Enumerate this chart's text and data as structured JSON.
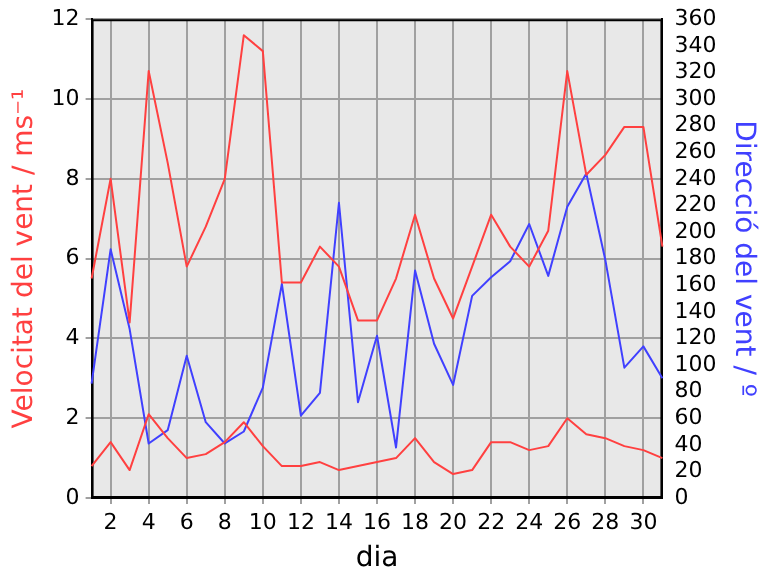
{
  "chart_data": {
    "type": "line",
    "xlabel": "dia",
    "ylabel": "Velocitat del vent / ms⁻¹",
    "y2label": "Direcció del vent / º",
    "x": [
      1,
      2,
      3,
      4,
      5,
      6,
      7,
      8,
      9,
      10,
      11,
      12,
      13,
      14,
      15,
      16,
      17,
      18,
      19,
      20,
      21,
      22,
      23,
      24,
      25,
      26,
      27,
      28,
      29,
      30,
      31
    ],
    "series": [
      {
        "color": "#ff4040",
        "values": [
          5.5,
          8.0,
          4.4,
          10.7,
          8.4,
          5.8,
          6.8,
          8.0,
          11.6,
          11.2,
          5.4,
          5.4,
          6.3,
          5.8,
          4.45,
          4.45,
          5.5,
          7.1,
          5.5,
          4.5,
          5.8,
          7.1,
          6.3,
          5.8,
          6.7,
          10.7,
          8.1,
          8.6,
          9.3,
          9.3,
          6.3
        ]
      },
      {
        "color": "#ff4040",
        "values": [
          0.8,
          1.4,
          0.7,
          2.1,
          1.5,
          1.0,
          1.1,
          1.4,
          1.9,
          1.3,
          0.8,
          0.8,
          0.9,
          0.7,
          0.8,
          0.9,
          1.0,
          1.5,
          0.9,
          0.6,
          0.7,
          1.4,
          1.4,
          1.2,
          1.3,
          2.0,
          1.6,
          1.5,
          1.3,
          1.2,
          1.0
        ]
      },
      {
        "color": "#4040ff",
        "axis": "y2",
        "values": [
          86,
          187,
          127,
          41,
          51,
          107,
          57,
          41,
          50,
          83,
          161,
          62,
          79,
          222,
          72,
          122,
          38,
          171,
          116,
          85,
          152,
          166,
          178,
          206,
          167,
          219,
          244,
          179,
          98,
          114,
          90
        ]
      }
    ],
    "xlim": [
      1,
      31
    ],
    "xticks": [
      2,
      4,
      6,
      8,
      10,
      12,
      14,
      16,
      18,
      20,
      22,
      24,
      26,
      28,
      30
    ],
    "ylim": [
      0,
      12
    ],
    "yticks": [
      0,
      2,
      4,
      6,
      8,
      10,
      12
    ],
    "y2lim": [
      0,
      360
    ],
    "y2ticks": [
      0,
      20,
      40,
      60,
      80,
      100,
      120,
      140,
      160,
      180,
      200,
      220,
      240,
      260,
      280,
      300,
      320,
      340,
      360
    ],
    "grid": true,
    "legend": false,
    "marker": "none",
    "line_style": "solid"
  }
}
